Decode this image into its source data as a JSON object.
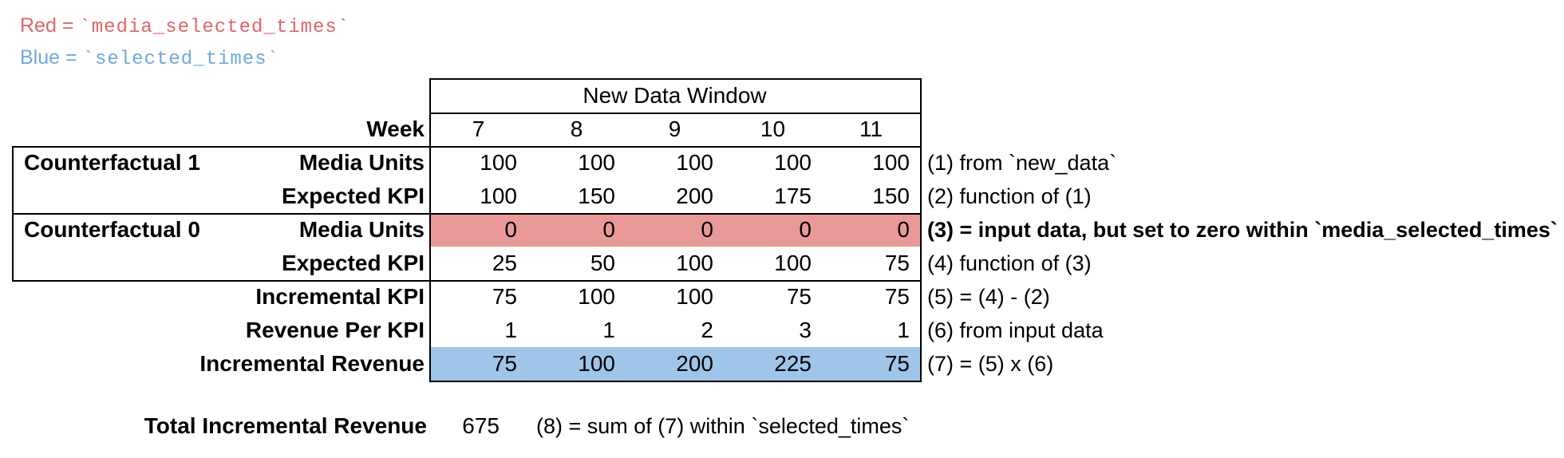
{
  "legend": [
    {
      "label": "Red",
      "operator": " = ",
      "code": "`media_selected_times`",
      "text_color": "#e06666"
    },
    {
      "label": "Blue",
      "operator": " = ",
      "code": "`selected_times`",
      "text_color": "#6fa8dc"
    }
  ],
  "table": {
    "header": "New Data Window",
    "week_label": "Week",
    "weeks": [
      "7",
      "8",
      "9",
      "10",
      "11"
    ],
    "rows": [
      {
        "section": "Counterfactual 1",
        "label": "Media Units",
        "values": [
          "100",
          "100",
          "100",
          "100",
          "100"
        ],
        "highlight": "none",
        "annotation": "(1) from `new_data`",
        "annotation_bold": false
      },
      {
        "section": "",
        "label": "Expected KPI",
        "values": [
          "100",
          "150",
          "200",
          "175",
          "150"
        ],
        "highlight": "none",
        "annotation": "(2) function of (1)",
        "annotation_bold": false
      },
      {
        "section": "Counterfactual 0",
        "label": "Media Units",
        "values": [
          "0",
          "0",
          "0",
          "0",
          "0"
        ],
        "highlight": "red",
        "annotation": "(3) = input data, but set to zero within `media_selected_times`",
        "annotation_bold": true
      },
      {
        "section": "",
        "label": "Expected KPI",
        "values": [
          "25",
          "50",
          "100",
          "100",
          "75"
        ],
        "highlight": "none",
        "annotation": "(4) function of (3)",
        "annotation_bold": false
      },
      {
        "section": "",
        "label": "Incremental KPI",
        "values": [
          "75",
          "100",
          "100",
          "75",
          "75"
        ],
        "highlight": "none",
        "annotation": "(5) = (4) - (2)",
        "annotation_bold": false
      },
      {
        "section": "",
        "label": "Revenue Per KPI",
        "values": [
          "1",
          "1",
          "2",
          "3",
          "1"
        ],
        "highlight": "none",
        "annotation": "(6) from input data",
        "annotation_bold": false
      },
      {
        "section": "",
        "label": "Incremental Revenue",
        "values": [
          "75",
          "100",
          "200",
          "225",
          "75"
        ],
        "highlight": "blue",
        "annotation": "(7) = (5) x (6)",
        "annotation_bold": false
      }
    ]
  },
  "total": {
    "label": "Total Incremental Revenue",
    "value": "675",
    "annotation": "(8) = sum of (7) within `selected_times`"
  },
  "colors": {
    "red_fill": "#ea9999",
    "blue_fill": "#9fc5e8",
    "red_text": "#e06666",
    "blue_text": "#6fa8dc",
    "border": "#000000"
  }
}
